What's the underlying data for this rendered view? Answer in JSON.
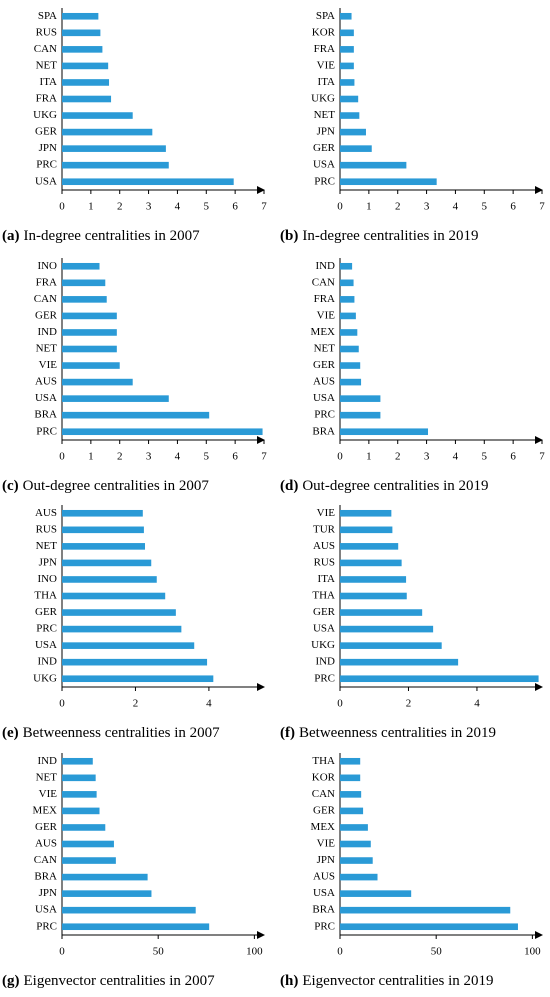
{
  "chart_data": [
    {
      "type": "bar",
      "orientation": "horizontal",
      "caption_label": "(a)",
      "caption": "In-degree centralities in 2007",
      "categories": [
        "SPA",
        "RUS",
        "CAN",
        "NET",
        "ITA",
        "FRA",
        "UKG",
        "GER",
        "JPN",
        "PRC",
        "USA"
      ],
      "values": [
        1.26,
        1.33,
        1.4,
        1.6,
        1.63,
        1.7,
        2.45,
        3.13,
        3.6,
        3.7,
        5.95
      ],
      "xlim": [
        0,
        7
      ],
      "xticks": [
        0,
        1,
        2,
        3,
        4,
        5,
        6,
        7
      ],
      "color": "#2a9ad6"
    },
    {
      "type": "bar",
      "orientation": "horizontal",
      "caption_label": "(b)",
      "caption": "In-degree centralities in 2019",
      "categories": [
        "SPA",
        "KOR",
        "FRA",
        "VIE",
        "ITA",
        "UKG",
        "NET",
        "JPN",
        "GER",
        "USA",
        "PRC"
      ],
      "values": [
        0.4,
        0.48,
        0.48,
        0.48,
        0.5,
        0.63,
        0.67,
        0.9,
        1.1,
        2.3,
        3.35
      ],
      "xlim": [
        0,
        7
      ],
      "xticks": [
        0,
        1,
        2,
        3,
        4,
        5,
        6,
        7
      ],
      "color": "#2a9ad6"
    },
    {
      "type": "bar",
      "orientation": "horizontal",
      "caption_label": "(c)",
      "caption": "Out-degree centralities in 2007",
      "categories": [
        "INO",
        "FRA",
        "CAN",
        "GER",
        "IND",
        "NET",
        "VIE",
        "AUS",
        "USA",
        "BRA",
        "PRC"
      ],
      "values": [
        1.3,
        1.5,
        1.55,
        1.9,
        1.9,
        1.9,
        2.0,
        2.45,
        3.7,
        5.1,
        6.95
      ],
      "xlim": [
        0,
        7
      ],
      "xticks": [
        0,
        1,
        2,
        3,
        4,
        5,
        6,
        7
      ],
      "color": "#2a9ad6"
    },
    {
      "type": "bar",
      "orientation": "horizontal",
      "caption_label": "(d)",
      "caption": "Out-degree centralities in 2019",
      "categories": [
        "IND",
        "CAN",
        "FRA",
        "VIE",
        "MEX",
        "NET",
        "GER",
        "AUS",
        "USA",
        "PRC",
        "BRA"
      ],
      "values": [
        0.42,
        0.47,
        0.5,
        0.55,
        0.6,
        0.65,
        0.7,
        0.73,
        1.4,
        1.4,
        3.05
      ],
      "xlim": [
        0,
        7
      ],
      "xticks": [
        0,
        1,
        2,
        3,
        4,
        5,
        6,
        7
      ],
      "color": "#2a9ad6"
    },
    {
      "type": "bar",
      "orientation": "horizontal",
      "caption_label": "(e)",
      "caption": "Betweenness centralities in 2007",
      "categories": [
        "AUS",
        "RUS",
        "NET",
        "JPN",
        "INO",
        "THA",
        "GER",
        "PRC",
        "USA",
        "IND",
        "UKG"
      ],
      "values": [
        2.2,
        2.23,
        2.26,
        2.43,
        2.58,
        2.81,
        3.1,
        3.25,
        3.6,
        3.95,
        4.12
      ],
      "xlim": [
        0,
        5.5
      ],
      "xticks": [
        0,
        2,
        4
      ],
      "color": "#2a9ad6"
    },
    {
      "type": "bar",
      "orientation": "horizontal",
      "caption_label": "(f)",
      "caption": "Betweenness centralities in 2019",
      "categories": [
        "VIE",
        "TUR",
        "AUS",
        "RUS",
        "ITA",
        "THA",
        "GER",
        "USA",
        "UKG",
        "IND",
        "PRC"
      ],
      "values": [
        1.5,
        1.53,
        1.7,
        1.8,
        1.93,
        1.95,
        2.4,
        2.72,
        2.97,
        3.45,
        5.8
      ],
      "xlim": [
        0,
        5.9
      ],
      "xticks": [
        0,
        2,
        4
      ],
      "color": "#2a9ad6"
    },
    {
      "type": "bar",
      "orientation": "horizontal",
      "caption_label": "(g)",
      "caption": "Eigenvector centralities in 2007",
      "categories": [
        "IND",
        "NET",
        "VIE",
        "MEX",
        "GER",
        "AUS",
        "CAN",
        "BRA",
        "JPN",
        "USA",
        "PRC"
      ],
      "values": [
        16,
        17.5,
        18,
        19.5,
        22.5,
        27,
        28,
        44.5,
        46.5,
        69.5,
        76.5
      ],
      "xlim": [
        0,
        105
      ],
      "xticks": [
        0,
        50,
        100
      ],
      "color": "#2a9ad6"
    },
    {
      "type": "bar",
      "orientation": "horizontal",
      "caption_label": "(h)",
      "caption": "Eigenvector centralities in 2019",
      "categories": [
        "THA",
        "KOR",
        "CAN",
        "GER",
        "MEX",
        "VIE",
        "JPN",
        "AUS",
        "USA",
        "BRA",
        "PRC"
      ],
      "values": [
        10.5,
        10.5,
        11,
        12,
        14.5,
        16,
        17,
        19.5,
        37,
        88.5,
        92.5
      ],
      "xlim": [
        0,
        105
      ],
      "xticks": [
        0,
        50,
        100
      ],
      "color": "#2a9ad6"
    }
  ]
}
